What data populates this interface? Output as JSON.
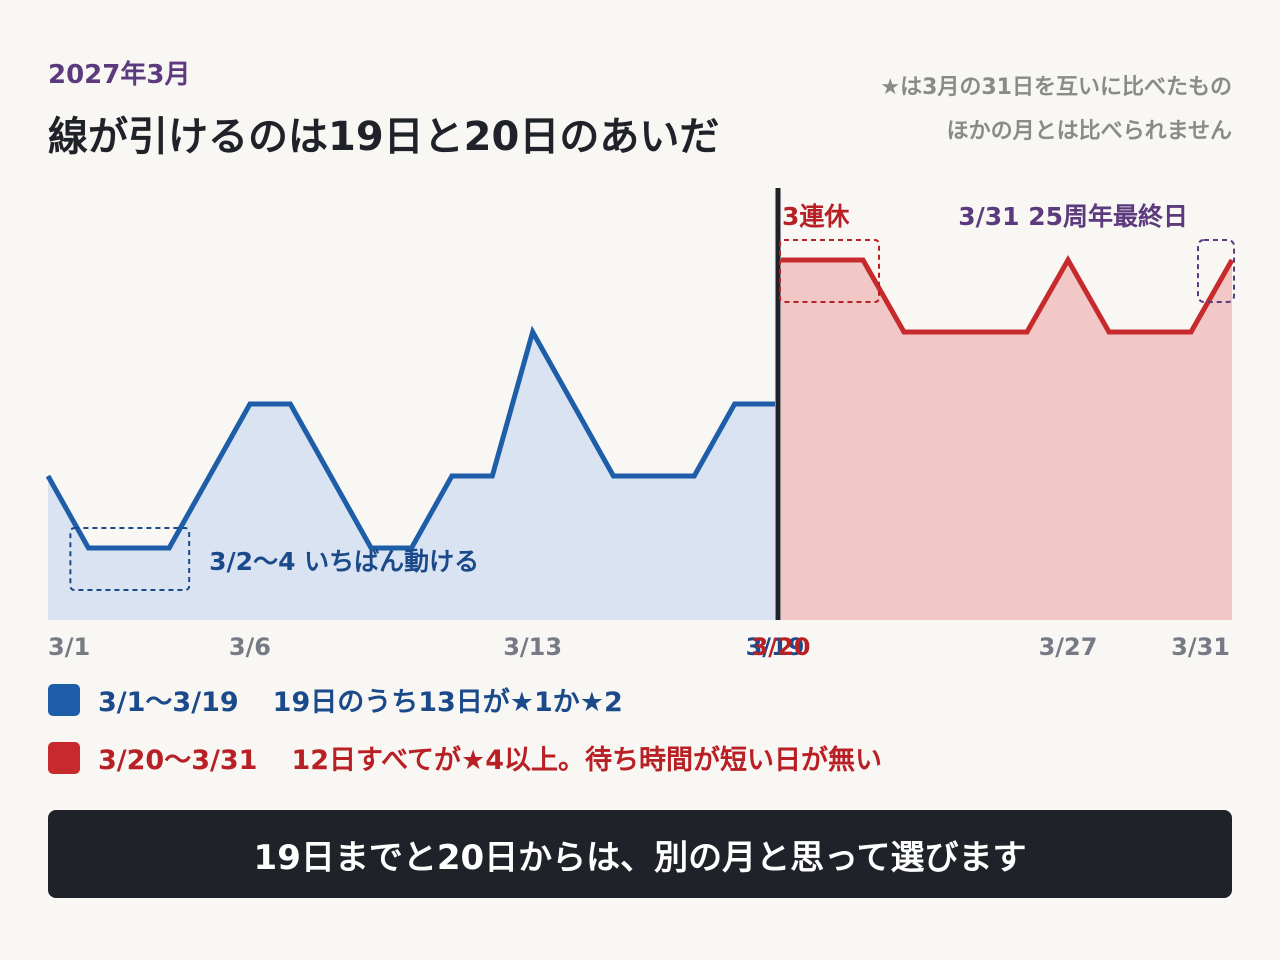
{
  "header": {
    "eyebrow": "2027年3月",
    "title": "線が引けるのは19日と20日のあいだ",
    "note_lines": [
      "★は3月の31日を互いに比べたもの",
      "ほかの月とは比べられません"
    ]
  },
  "chart_data": {
    "type": "area",
    "x_unit": "day of March 2027",
    "y_unit": "stars",
    "y_range": [
      0,
      5
    ],
    "grid": false,
    "series": [
      {
        "color": "#1e5ea8",
        "fill": "#d9e3f2",
        "x": [
          1,
          2,
          3,
          4,
          5,
          6,
          7,
          8,
          9,
          10,
          11,
          12,
          13,
          14,
          15,
          16,
          17,
          18,
          19
        ],
        "values": [
          2,
          1,
          1,
          1,
          2,
          3,
          3,
          2,
          1,
          1,
          2,
          2,
          4,
          3,
          2,
          2,
          2,
          3,
          3
        ]
      },
      {
        "color": "#c72a2d",
        "fill": "#f2c8c6",
        "x": [
          20,
          21,
          22,
          23,
          24,
          25,
          26,
          27,
          28,
          29,
          30,
          31
        ],
        "values": [
          5,
          5,
          5,
          4,
          4,
          4,
          4,
          5,
          4,
          4,
          4,
          5
        ]
      }
    ],
    "divider_between": [
      19,
      20
    ],
    "x_tick_labels": [
      {
        "x": 1,
        "label": "3/1",
        "color": "#767a85"
      },
      {
        "x": 6,
        "label": "3/6",
        "color": "#767a85"
      },
      {
        "x": 13,
        "label": "3/13",
        "color": "#767a85"
      },
      {
        "x": 19,
        "label": "3/19",
        "color": "#1b4a8a"
      },
      {
        "x": 20,
        "label": "3/20",
        "color": "#b82025"
      },
      {
        "x": 27,
        "label": "3/27",
        "color": "#767a85"
      },
      {
        "x": 31,
        "label": "3/31",
        "color": "#767a85"
      }
    ],
    "annotations": [
      {
        "text": "3/2〜4 いちばん動ける",
        "x_from": 2,
        "x_to": 4,
        "y": 1,
        "color": "#1b4a8a",
        "label_side": "right"
      },
      {
        "text": "3連休",
        "x_from": 20,
        "x_to": 22,
        "y": 5,
        "color": "#b82025",
        "label_side": "above"
      },
      {
        "text": "3/31 25周年最終日",
        "x_from": 31,
        "x_to": 31,
        "y": 5,
        "color": "#5b3a7e",
        "label_side": "above-left"
      }
    ]
  },
  "legend": [
    {
      "range": "3/1〜3/19",
      "text": "19日のうち13日が★1か★2"
    },
    {
      "range": "3/20〜3/31",
      "text": "12日すべてが★4以上。待ち時間が短い日が無い"
    }
  ],
  "banner": {
    "text": "19日までと20日からは、別の月と思って選びます"
  }
}
